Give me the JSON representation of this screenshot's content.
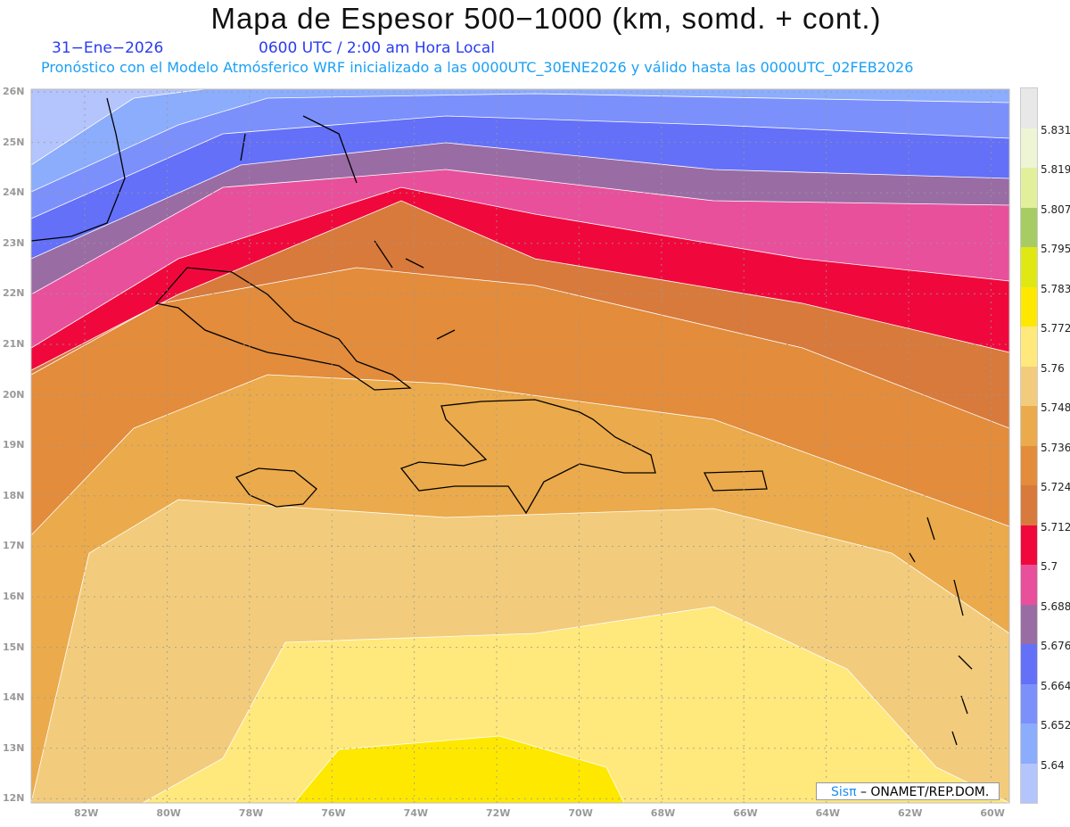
{
  "header": {
    "title": "Mapa de Espesor 500−1000 (km, somd. + cont.)",
    "date": "31−Ene−2026",
    "time": "0600 UTC / 2:00 am Hora Local",
    "subtitle": "Pronóstico con el Modelo Atmósferico WRF inicializado a las 0000UTC_30ENE2026 y válido hasta las  0000UTC_02FEB2026"
  },
  "lat_labels": [
    "26N",
    "25N",
    "24N",
    "23N",
    "22N",
    "21N",
    "20N",
    "19N",
    "18N",
    "17N",
    "16N",
    "15N",
    "14N",
    "13N",
    "12N"
  ],
  "lon_labels": [
    "82W",
    "80W",
    "78W",
    "76W",
    "74W",
    "72W",
    "70W",
    "68W",
    "66W",
    "64W",
    "62W",
    "60W"
  ],
  "colorbar": {
    "levels": [
      "5.831",
      "5.819",
      "5.807",
      "5.795",
      "5.783",
      "5.772",
      "5.76",
      "5.748",
      "5.736",
      "5.724",
      "5.712",
      "5.7",
      "5.688",
      "5.676",
      "5.664",
      "5.652",
      "5.64"
    ],
    "colors": [
      "#e8e8e8",
      "#eef5d4",
      "#e2f09c",
      "#a8cc64",
      "#e0e814",
      "#ffe800",
      "#ffe87c",
      "#f2cc7c",
      "#ebaa4b",
      "#e28c3c",
      "#d87a3c",
      "#f0083c",
      "#e8509c",
      "#9a6ca4",
      "#6470f8",
      "#7c90fc",
      "#8cacfc",
      "#b4c4fc"
    ]
  },
  "credit": {
    "brand": "Sisπ",
    "text": " –  ONAMET/REP.DOM."
  }
}
